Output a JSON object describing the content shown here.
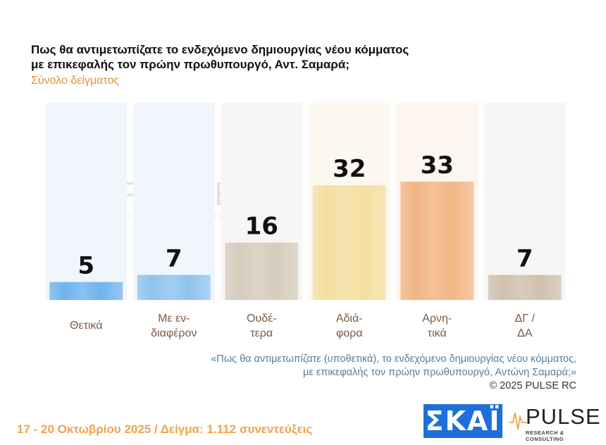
{
  "header": {
    "title_line1": "Πως θα αντιμετωπίζατε το ενδεχόμενο δημιουργίας νέου κόμματος",
    "title_line2": "με επικεφαλής τον πρώην πρωθυπουργό, Αντ. Σαμαρά;",
    "subtitle": "Σύνολο δείγματος"
  },
  "chart_data": {
    "type": "bar",
    "categories": [
      [
        "Θετικά"
      ],
      [
        "Με εν-",
        "διαφέρον"
      ],
      [
        "Ουδέ-",
        "τερα"
      ],
      [
        "Αδιά-",
        "φορα"
      ],
      [
        "Αρνη-",
        "τικά"
      ],
      [
        "ΔΓ /",
        "ΔΑ"
      ]
    ],
    "values": [
      5,
      7,
      16,
      32,
      33,
      7
    ],
    "bar_colors": [
      "#6fb3ec",
      "#8ec3ef",
      "#d6ccbd",
      "#f3dfa0",
      "#f2b584",
      "#cfc1ad"
    ],
    "column_bg_colors": [
      "#f1f6fc",
      "#f1f6fc",
      "#f8f6f4",
      "#fdf9f1",
      "#fdf5ef",
      "#f8f6f4"
    ],
    "ylim": [
      0,
      55
    ],
    "grid": false,
    "legend": "none"
  },
  "note": {
    "line1": "«Πως θα αντιμετωπίζατε (υποθετικά), το ενδεχόμενο δημιουργίας νέου κόμματος,",
    "line2": "με επικεφαλής τον πρώην πρωθυπουργό, Αντώνη Σαμαρά;»",
    "copyright": "©  2025  PULSE RC"
  },
  "footer": {
    "text": "17 - 20 Οκτωβρίου 2025  /  Δείγμα:  1.112 συνεντεύξεις"
  },
  "logos": {
    "skai": "ΣΚΑΪ",
    "pulse_word": "PULSE",
    "pulse_sub": "RESEARCH & CONSULTING",
    "skai_color": "#1e6fd9",
    "pulse_color": "#f0a24e"
  }
}
